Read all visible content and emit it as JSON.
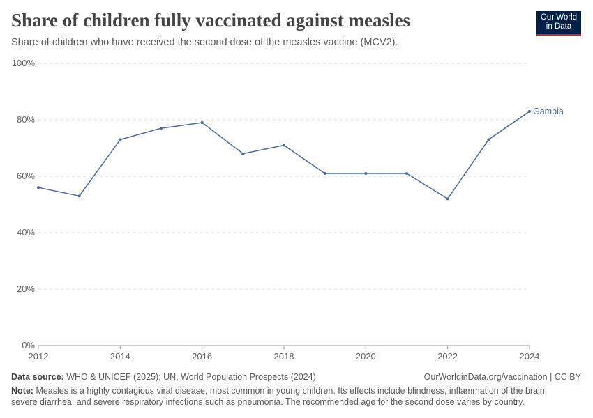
{
  "header": {
    "title": "Share of children fully vaccinated against measles",
    "subtitle": "Share of children who have received the second dose of the measles vaccine (MCV2).",
    "logo": "Our World in Data"
  },
  "chart_data": {
    "type": "line",
    "x": [
      2012,
      2013,
      2014,
      2015,
      2016,
      2017,
      2018,
      2019,
      2020,
      2021,
      2022,
      2023,
      2024
    ],
    "series": [
      {
        "name": "Gambia",
        "color": "#4c6a9c",
        "values": [
          56,
          53,
          73,
          77,
          79,
          68,
          71,
          61,
          61,
          61,
          52,
          73,
          83
        ]
      }
    ],
    "ylim": [
      0,
      100
    ],
    "xlim": [
      2012,
      2024
    ],
    "yticks": [
      0,
      20,
      40,
      60,
      80,
      100
    ],
    "ytick_labels": [
      "0%",
      "20%",
      "40%",
      "60%",
      "80%",
      "100%"
    ],
    "xticks": [
      2012,
      2014,
      2016,
      2018,
      2020,
      2022,
      2024
    ],
    "grid": "horizontal dashed",
    "legend": "inline label at line end"
  },
  "footer": {
    "source_label": "Data source:",
    "source": "WHO & UNICEF (2025); UN, World Population Prospects (2024)",
    "url": "OurWorldinData.org/vaccination | CC BY",
    "note_label": "Note:",
    "note": "Measles is a highly contagious viral disease, most common in young children. Its effects include blindness, inflammation of the brain, severe diarrhea, and severe respiratory infections such as pneumonia. The recommended age for the second dose varies by country."
  }
}
